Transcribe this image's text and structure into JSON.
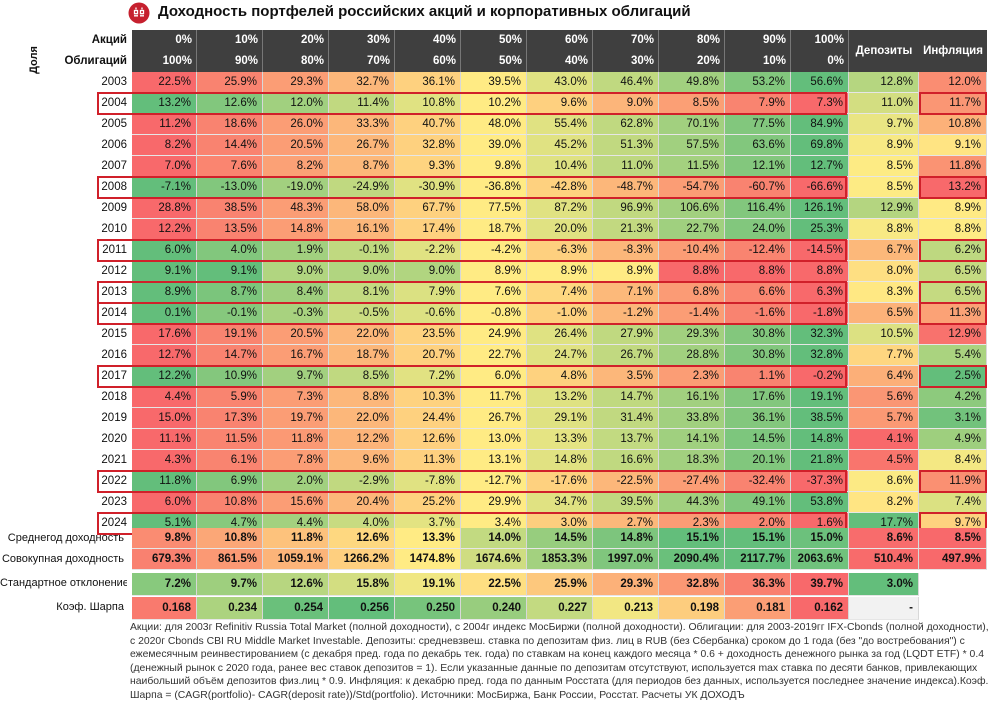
{
  "title": "Доходность портфелей российских акций и корпоративных облигаций",
  "logo_icon": "dokhod-logo-icon",
  "share_label": "Доля",
  "header": {
    "stocks_label": "Акций",
    "bonds_label": "Облигаций",
    "stocks": [
      "0%",
      "10%",
      "20%",
      "30%",
      "40%",
      "50%",
      "60%",
      "70%",
      "80%",
      "90%",
      "100%"
    ],
    "bonds": [
      "100%",
      "90%",
      "80%",
      "70%",
      "60%",
      "50%",
      "40%",
      "30%",
      "20%",
      "10%",
      "0%"
    ],
    "deposits": "Депозиты",
    "inflation": "Инфляция"
  },
  "colors": {
    "red": "#f8696b",
    "yellow": "#ffeb84",
    "green": "#63be7b",
    "dark_header": "#3f3f3f",
    "highlight": "#d0202a"
  },
  "chart_data": {
    "type": "table",
    "title": "Доходность портфелей российских акций и корпоративных облигаций",
    "years": [
      "2003",
      "2004",
      "2005",
      "2006",
      "2007",
      "2008",
      "2009",
      "2010",
      "2011",
      "2012",
      "2013",
      "2014",
      "2015",
      "2016",
      "2017",
      "2018",
      "2019",
      "2020",
      "2021",
      "2022",
      "2023",
      "2024"
    ],
    "highlighted_years": [
      "2004",
      "2008",
      "2011",
      "2013",
      "2014",
      "2017",
      "2022",
      "2024"
    ],
    "columns": [
      "0%",
      "10%",
      "20%",
      "30%",
      "40%",
      "50%",
      "60%",
      "70%",
      "80%",
      "90%",
      "100%",
      "Депозиты",
      "Инфляция"
    ],
    "rows": [
      [
        "22.5%",
        "25.9%",
        "29.3%",
        "32.7%",
        "36.1%",
        "39.5%",
        "43.0%",
        "46.4%",
        "49.8%",
        "53.2%",
        "56.6%",
        "12.8%",
        "12.0%"
      ],
      [
        "13.2%",
        "12.6%",
        "12.0%",
        "11.4%",
        "10.8%",
        "10.2%",
        "9.6%",
        "9.0%",
        "8.5%",
        "7.9%",
        "7.3%",
        "11.0%",
        "11.7%"
      ],
      [
        "11.2%",
        "18.6%",
        "26.0%",
        "33.3%",
        "40.7%",
        "48.0%",
        "55.4%",
        "62.8%",
        "70.1%",
        "77.5%",
        "84.9%",
        "9.7%",
        "10.8%"
      ],
      [
        "8.2%",
        "14.4%",
        "20.5%",
        "26.7%",
        "32.8%",
        "39.0%",
        "45.2%",
        "51.3%",
        "57.5%",
        "63.6%",
        "69.8%",
        "8.9%",
        "9.1%"
      ],
      [
        "7.0%",
        "7.6%",
        "8.2%",
        "8.7%",
        "9.3%",
        "9.8%",
        "10.4%",
        "11.0%",
        "11.5%",
        "12.1%",
        "12.7%",
        "8.5%",
        "11.8%"
      ],
      [
        "-7.1%",
        "-13.0%",
        "-19.0%",
        "-24.9%",
        "-30.9%",
        "-36.8%",
        "-42.8%",
        "-48.7%",
        "-54.7%",
        "-60.7%",
        "-66.6%",
        "8.5%",
        "13.2%"
      ],
      [
        "28.8%",
        "38.5%",
        "48.3%",
        "58.0%",
        "67.7%",
        "77.5%",
        "87.2%",
        "96.9%",
        "106.6%",
        "116.4%",
        "126.1%",
        "12.9%",
        "8.9%"
      ],
      [
        "12.2%",
        "13.5%",
        "14.8%",
        "16.1%",
        "17.4%",
        "18.7%",
        "20.0%",
        "21.3%",
        "22.7%",
        "24.0%",
        "25.3%",
        "8.8%",
        "8.8%"
      ],
      [
        "6.0%",
        "4.0%",
        "1.9%",
        "-0.1%",
        "-2.2%",
        "-4.2%",
        "-6.3%",
        "-8.3%",
        "-10.4%",
        "-12.4%",
        "-14.5%",
        "6.7%",
        "6.2%"
      ],
      [
        "9.1%",
        "9.1%",
        "9.0%",
        "9.0%",
        "9.0%",
        "8.9%",
        "8.9%",
        "8.9%",
        "8.8%",
        "8.8%",
        "8.8%",
        "8.0%",
        "6.5%"
      ],
      [
        "8.9%",
        "8.7%",
        "8.4%",
        "8.1%",
        "7.9%",
        "7.6%",
        "7.4%",
        "7.1%",
        "6.8%",
        "6.6%",
        "6.3%",
        "8.3%",
        "6.5%"
      ],
      [
        "0.1%",
        "-0.1%",
        "-0.3%",
        "-0.5%",
        "-0.6%",
        "-0.8%",
        "-1.0%",
        "-1.2%",
        "-1.4%",
        "-1.6%",
        "-1.8%",
        "6.5%",
        "11.3%"
      ],
      [
        "17.6%",
        "19.1%",
        "20.5%",
        "22.0%",
        "23.5%",
        "24.9%",
        "26.4%",
        "27.9%",
        "29.3%",
        "30.8%",
        "32.3%",
        "10.5%",
        "12.9%"
      ],
      [
        "12.7%",
        "14.7%",
        "16.7%",
        "18.7%",
        "20.7%",
        "22.7%",
        "24.7%",
        "26.7%",
        "28.8%",
        "30.8%",
        "32.8%",
        "7.7%",
        "5.4%"
      ],
      [
        "12.2%",
        "10.9%",
        "9.7%",
        "8.5%",
        "7.2%",
        "6.0%",
        "4.8%",
        "3.5%",
        "2.3%",
        "1.1%",
        "-0.2%",
        "6.4%",
        "2.5%"
      ],
      [
        "4.4%",
        "5.9%",
        "7.3%",
        "8.8%",
        "10.3%",
        "11.7%",
        "13.2%",
        "14.7%",
        "16.1%",
        "17.6%",
        "19.1%",
        "5.6%",
        "4.2%"
      ],
      [
        "15.0%",
        "17.3%",
        "19.7%",
        "22.0%",
        "24.4%",
        "26.7%",
        "29.1%",
        "31.4%",
        "33.8%",
        "36.1%",
        "38.5%",
        "5.7%",
        "3.1%"
      ],
      [
        "11.1%",
        "11.5%",
        "11.8%",
        "12.2%",
        "12.6%",
        "13.0%",
        "13.3%",
        "13.7%",
        "14.1%",
        "14.5%",
        "14.8%",
        "4.1%",
        "4.9%"
      ],
      [
        "4.3%",
        "6.1%",
        "7.8%",
        "9.6%",
        "11.3%",
        "13.1%",
        "14.8%",
        "16.6%",
        "18.3%",
        "20.1%",
        "21.8%",
        "4.5%",
        "8.4%"
      ],
      [
        "11.8%",
        "6.9%",
        "2.0%",
        "-2.9%",
        "-7.8%",
        "-12.7%",
        "-17.6%",
        "-22.5%",
        "-27.4%",
        "-32.4%",
        "-37.3%",
        "8.6%",
        "11.9%"
      ],
      [
        "6.0%",
        "10.8%",
        "15.6%",
        "20.4%",
        "25.2%",
        "29.9%",
        "34.7%",
        "39.5%",
        "44.3%",
        "49.1%",
        "53.8%",
        "8.2%",
        "7.4%"
      ],
      [
        "5.1%",
        "4.7%",
        "4.4%",
        "4.0%",
        "3.7%",
        "3.4%",
        "3.0%",
        "2.7%",
        "2.3%",
        "2.0%",
        "1.6%",
        "17.7%",
        "9.7%"
      ]
    ],
    "summary": [
      {
        "label": "Среднегод доходность",
        "values": [
          "9.8%",
          "10.8%",
          "11.8%",
          "12.6%",
          "13.3%",
          "14.0%",
          "14.5%",
          "14.8%",
          "15.1%",
          "15.1%",
          "15.0%",
          "8.6%",
          "8.5%"
        ]
      },
      {
        "label": "Совокупная доходность",
        "values": [
          "679.3%",
          "861.5%",
          "1059.1%",
          "1266.2%",
          "1474.8%",
          "1674.6%",
          "1853.3%",
          "1997.0%",
          "2090.4%",
          "2117.7%",
          "2063.6%",
          "510.4%",
          "497.9%"
        ]
      },
      {
        "label": "Стандартное отклонение",
        "values": [
          "7.2%",
          "9.7%",
          "12.6%",
          "15.8%",
          "19.1%",
          "22.5%",
          "25.9%",
          "29.3%",
          "32.8%",
          "36.3%",
          "39.7%",
          "3.0%"
        ]
      },
      {
        "label": "Коэф. Шарпа",
        "values": [
          "0.168",
          "0.234",
          "0.254",
          "0.256",
          "0.250",
          "0.240",
          "0.227",
          "0.213",
          "0.198",
          "0.181",
          "0.162",
          "-"
        ]
      }
    ]
  },
  "footnote": "Акции: для 2003г Refinitiv Russia Total Market (полной доходности), с 2004г индекс МосБиржи (полной доходности). Облигации: для 2003-2019гг IFX-Cbonds (полной доходности), с 2020г Cbonds CBI RU Middle Market Investable. Депозиты: средневзвеш. ставка по депозитам физ. лиц в RUB (без Сбербанка) сроком до 1 года (без \"до востребования\") с ежемесячным реинвестированием (с декабря пред. года по декабрь тек. года) по ставкам на конец каждого месяца * 0.6 + доходность денежного рынка за год (LQDT ETF) * 0.4 (денежный рынок с 2020 года, ранее вес ставок депозитов = 1). Если указанные данные по депозитам отсутствуют, используется max ставка по десяти банков, привлекающих наибольший объём депозитов физ.лиц * 0.9. Инфляция: к декабрю пред. года по данным Росстата (для периодов без данных, используется последнее значение индекса).Коэф. Шарпа = (CAGR(portfolio)- CAGR(deposit rate))/Std(portfolio). Источники: МосБиржа, Банк России, Росстат. Расчеты УК ДОХОДЪ"
}
